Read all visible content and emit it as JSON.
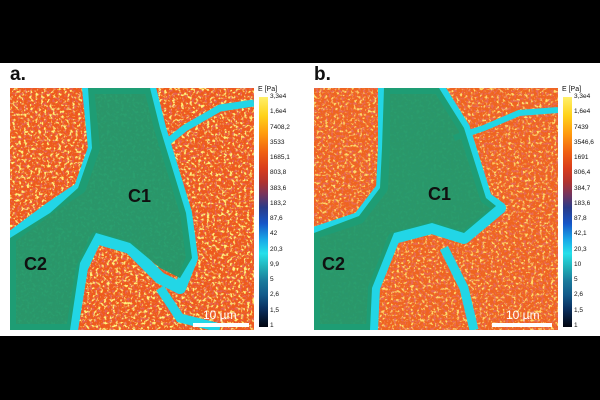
{
  "panels": [
    {
      "label": "a.",
      "regions": [
        "C1",
        "C2"
      ],
      "scalebar": "10 µm",
      "colorbar": {
        "title": "E [Pa]",
        "ticks": [
          "3,3e4",
          "1,6e4",
          "7408,2",
          "3533",
          "1685,1",
          "803,8",
          "383,6",
          "183,2",
          "87,6",
          "42",
          "20,3",
          "9,9",
          "5",
          "2,6",
          "1,5",
          "1"
        ]
      }
    },
    {
      "label": "b.",
      "regions": [
        "C1",
        "C2"
      ],
      "scalebar": "10 µm",
      "colorbar": {
        "title": "E [Pa]",
        "ticks": [
          "3,3e4",
          "1,6e4",
          "7439",
          "3546,6",
          "1691",
          "806,4",
          "384,7",
          "183,6",
          "87,8",
          "42,1",
          "20,3",
          "10",
          "5",
          "2,6",
          "1,5",
          "1"
        ]
      }
    }
  ],
  "colors": {
    "stiff_high": "#fde63a",
    "stiff_mid": "#ee5a1c",
    "stiff_low": "#c8281c",
    "soft_edge": "#22d6e6",
    "cell_overlay": "#1f9a6e"
  }
}
